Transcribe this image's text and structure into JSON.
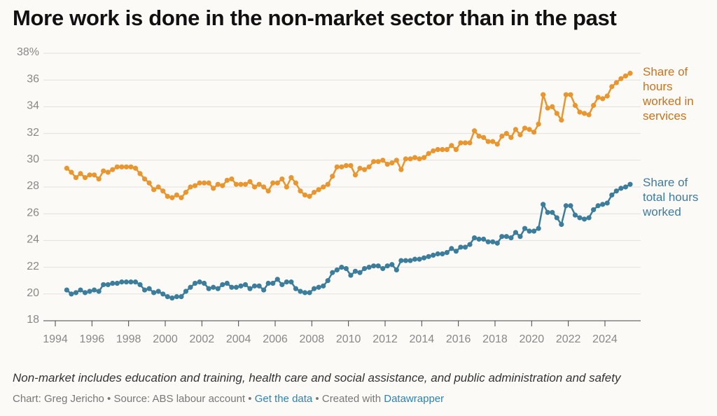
{
  "chart_data": {
    "type": "line",
    "title": "More work is done in the non-market sector than in the past",
    "note": "Non-market includes education and training, health care and social assistance, and public administration and safety",
    "credits": {
      "byline": "Chart: Greg Jericho",
      "source": "Source: ABS labour account",
      "link": "Get the data",
      "created": "Created with",
      "tool": "Datawrapper"
    },
    "x": [
      1994.625,
      1994.875,
      1995.125,
      1995.375,
      1995.625,
      1995.875,
      1996.125,
      1996.375,
      1996.625,
      1996.875,
      1997.125,
      1997.375,
      1997.625,
      1997.875,
      1998.125,
      1998.375,
      1998.625,
      1998.875,
      1999.125,
      1999.375,
      1999.625,
      1999.875,
      2000.125,
      2000.375,
      2000.625,
      2000.875,
      2001.125,
      2001.375,
      2001.625,
      2001.875,
      2002.125,
      2002.375,
      2002.625,
      2002.875,
      2003.125,
      2003.375,
      2003.625,
      2003.875,
      2004.125,
      2004.375,
      2004.625,
      2004.875,
      2005.125,
      2005.375,
      2005.625,
      2005.875,
      2006.125,
      2006.375,
      2006.625,
      2006.875,
      2007.125,
      2007.375,
      2007.625,
      2007.875,
      2008.125,
      2008.375,
      2008.625,
      2008.875,
      2009.125,
      2009.375,
      2009.625,
      2009.875,
      2010.125,
      2010.375,
      2010.625,
      2010.875,
      2011.125,
      2011.375,
      2011.625,
      2011.875,
      2012.125,
      2012.375,
      2012.625,
      2012.875,
      2013.125,
      2013.375,
      2013.625,
      2013.875,
      2014.125,
      2014.375,
      2014.625,
      2014.875,
      2015.125,
      2015.375,
      2015.625,
      2015.875,
      2016.125,
      2016.375,
      2016.625,
      2016.875,
      2017.125,
      2017.375,
      2017.625,
      2017.875,
      2018.125,
      2018.375,
      2018.625,
      2018.875,
      2019.125,
      2019.375,
      2019.625,
      2019.875,
      2020.125,
      2020.375,
      2020.625,
      2020.875,
      2021.125,
      2021.375,
      2021.625,
      2021.875,
      2022.125,
      2022.375,
      2022.625,
      2022.875,
      2023.125,
      2023.375,
      2023.625,
      2023.875,
      2024.125,
      2024.375,
      2024.625,
      2024.875,
      2025.125,
      2025.375
    ],
    "series": [
      {
        "name": "Share of hours worked in services",
        "color": "#e8962d",
        "label_color": "#c8731c",
        "values": [
          29.4,
          29.1,
          28.7,
          29.0,
          28.7,
          28.9,
          28.9,
          28.6,
          29.2,
          29.1,
          29.3,
          29.5,
          29.5,
          29.5,
          29.5,
          29.4,
          29.0,
          28.6,
          28.3,
          27.8,
          28.0,
          27.7,
          27.3,
          27.2,
          27.4,
          27.2,
          27.6,
          28.0,
          28.1,
          28.3,
          28.3,
          28.3,
          27.9,
          28.2,
          28.1,
          28.5,
          28.6,
          28.2,
          28.2,
          28.2,
          28.4,
          28.0,
          28.2,
          28.0,
          27.7,
          28.3,
          28.3,
          28.6,
          28.0,
          28.7,
          28.3,
          27.7,
          27.4,
          27.3,
          27.6,
          27.8,
          28.0,
          28.2,
          28.8,
          29.5,
          29.5,
          29.6,
          29.6,
          28.9,
          29.4,
          29.3,
          29.5,
          29.9,
          29.9,
          30.0,
          29.7,
          29.8,
          30.0,
          29.3,
          30.1,
          30.1,
          30.2,
          30.1,
          30.2,
          30.5,
          30.7,
          30.8,
          30.8,
          30.8,
          31.1,
          30.8,
          31.3,
          31.3,
          31.3,
          32.2,
          31.8,
          31.7,
          31.4,
          31.4,
          31.2,
          31.8,
          32.0,
          31.7,
          32.3,
          31.9,
          32.4,
          32.3,
          32.1,
          32.7,
          34.9,
          33.9,
          34.0,
          33.5,
          33.0,
          34.9,
          34.9,
          34.1,
          33.6,
          33.5,
          33.4,
          34.1,
          34.7,
          34.6,
          34.8,
          35.5,
          35.8,
          36.1,
          36.3,
          36.5
        ]
      },
      {
        "name": "Share of total hours worked",
        "color": "#3b7d9b",
        "label_color": "#3b7ca0",
        "values": [
          20.3,
          20.0,
          20.1,
          20.3,
          20.1,
          20.2,
          20.3,
          20.2,
          20.7,
          20.7,
          20.8,
          20.8,
          20.9,
          20.9,
          20.9,
          20.9,
          20.7,
          20.3,
          20.4,
          20.1,
          20.2,
          20.0,
          19.8,
          19.7,
          19.8,
          19.8,
          20.2,
          20.5,
          20.8,
          20.9,
          20.8,
          20.4,
          20.5,
          20.4,
          20.7,
          20.8,
          20.5,
          20.5,
          20.6,
          20.7,
          20.4,
          20.6,
          20.6,
          20.3,
          20.8,
          20.8,
          21.1,
          20.7,
          20.9,
          20.9,
          20.4,
          20.2,
          20.1,
          20.1,
          20.4,
          20.5,
          20.6,
          21.0,
          21.6,
          21.8,
          22.0,
          21.9,
          21.4,
          21.7,
          21.6,
          21.9,
          22.0,
          22.1,
          22.1,
          21.9,
          22.1,
          22.2,
          21.8,
          22.5,
          22.5,
          22.5,
          22.6,
          22.6,
          22.7,
          22.8,
          22.9,
          23.0,
          23.0,
          23.1,
          23.4,
          23.2,
          23.5,
          23.5,
          23.7,
          24.2,
          24.1,
          24.1,
          23.9,
          23.9,
          23.8,
          24.3,
          24.3,
          24.2,
          24.6,
          24.3,
          24.9,
          24.7,
          24.7,
          24.9,
          26.7,
          26.1,
          26.1,
          25.7,
          25.2,
          26.6,
          26.6,
          25.9,
          25.7,
          25.6,
          25.7,
          26.3,
          26.6,
          26.7,
          26.8,
          27.4,
          27.7,
          27.9,
          28.0,
          28.2
        ]
      }
    ],
    "xlim": [
      1993.35,
      2025.95
    ],
    "xticks": [
      1994,
      1996,
      1998,
      2000,
      2002,
      2004,
      2006,
      2008,
      2010,
      2012,
      2014,
      2016,
      2018,
      2020,
      2022,
      2024
    ],
    "ylim": [
      18,
      38
    ],
    "yticks": [
      18,
      20,
      22,
      24,
      26,
      28,
      30,
      32,
      34,
      36,
      {
        "value": 38,
        "label": "38%"
      }
    ],
    "grid": true
  }
}
